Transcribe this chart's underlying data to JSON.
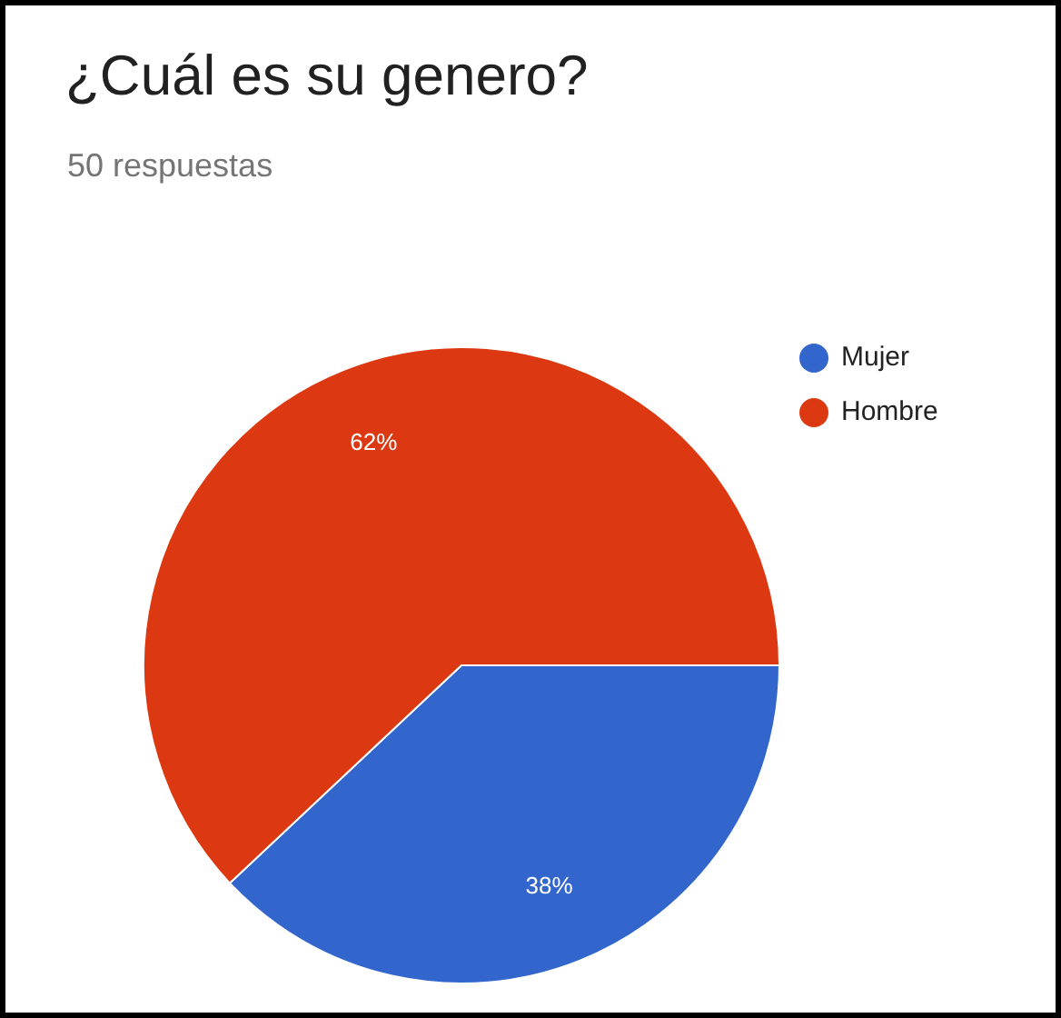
{
  "chart_data": {
    "type": "pie",
    "title": "¿Cuál es su genero?",
    "subtitle": "50 respuestas",
    "categories": [
      "Mujer",
      "Hombre"
    ],
    "values": [
      38,
      62
    ],
    "colors": [
      "#3366cc",
      "#dc3912"
    ],
    "value_labels": [
      "38%",
      "62%"
    ],
    "legend": "right"
  }
}
